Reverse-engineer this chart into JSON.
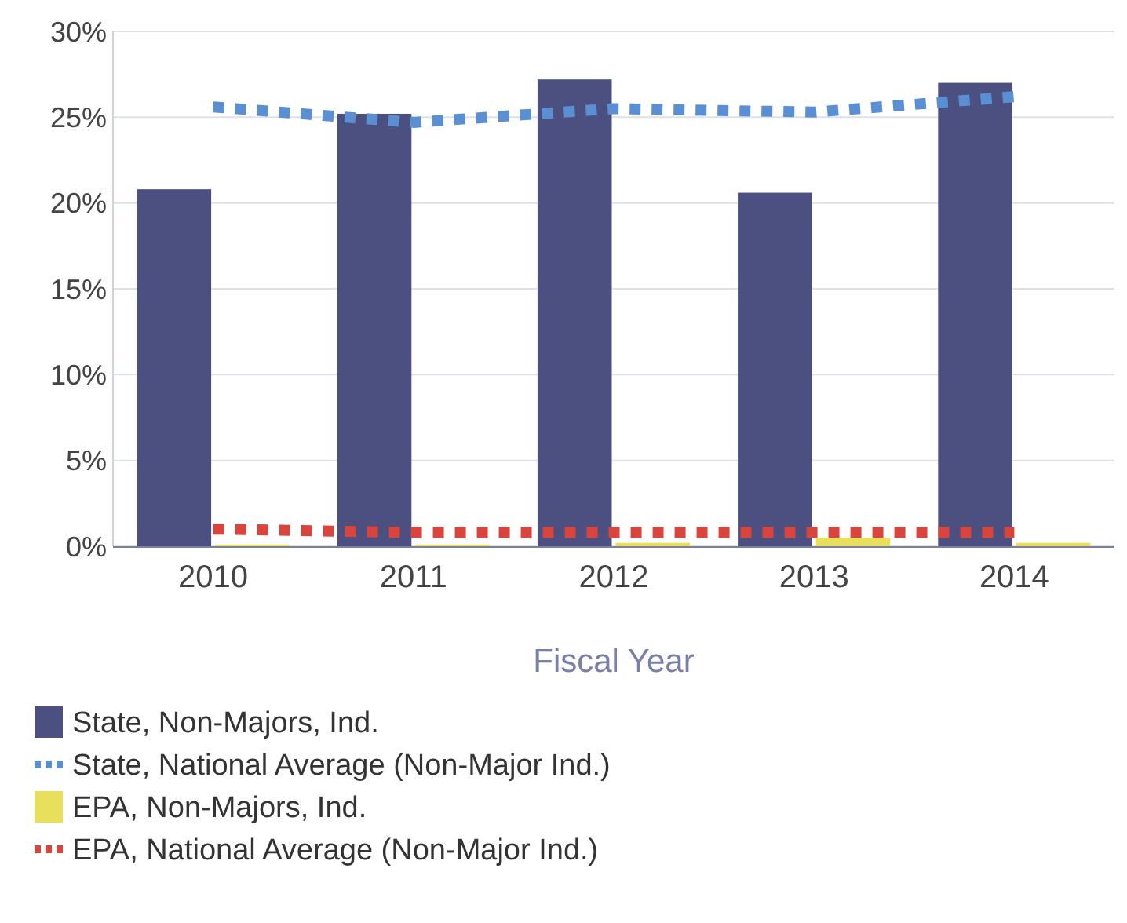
{
  "chart_data": {
    "type": "bar",
    "xlabel": "Fiscal Year",
    "categories": [
      "2010",
      "2011",
      "2012",
      "2013",
      "2014"
    ],
    "series": [
      {
        "name": "State, Non-Majors, Ind.",
        "color": "#4b5080",
        "values": [
          20.8,
          25.2,
          27.2,
          20.6,
          27.0
        ]
      },
      {
        "name": "State, National Average (Non-Major Ind.)",
        "type": "line",
        "color": "#5b8fd4",
        "line_style": "dotted",
        "values": [
          25.6,
          24.7,
          25.5,
          25.3,
          26.2
        ]
      },
      {
        "name": "EPA, Non-Majors, Ind.",
        "color": "#e8e05a",
        "values": [
          0.1,
          0.1,
          0.2,
          0.5,
          0.2
        ]
      },
      {
        "name": "EPA, National Average (Non-Major Ind.)",
        "type": "line",
        "color": "#d9443c",
        "line_style": "dotted",
        "values": [
          1.0,
          0.8,
          0.8,
          0.8,
          0.8
        ]
      }
    ],
    "ylim": [
      0,
      30
    ],
    "yticks": [
      {
        "value": 0,
        "label": "0%"
      },
      {
        "value": 5,
        "label": "5%"
      },
      {
        "value": 10,
        "label": "10%"
      },
      {
        "value": 15,
        "label": "15%"
      },
      {
        "value": 20,
        "label": "20%"
      },
      {
        "value": 25,
        "label": "25%"
      },
      {
        "value": 30,
        "label": "30%"
      }
    ],
    "grid": "y",
    "legend": "bottom"
  }
}
